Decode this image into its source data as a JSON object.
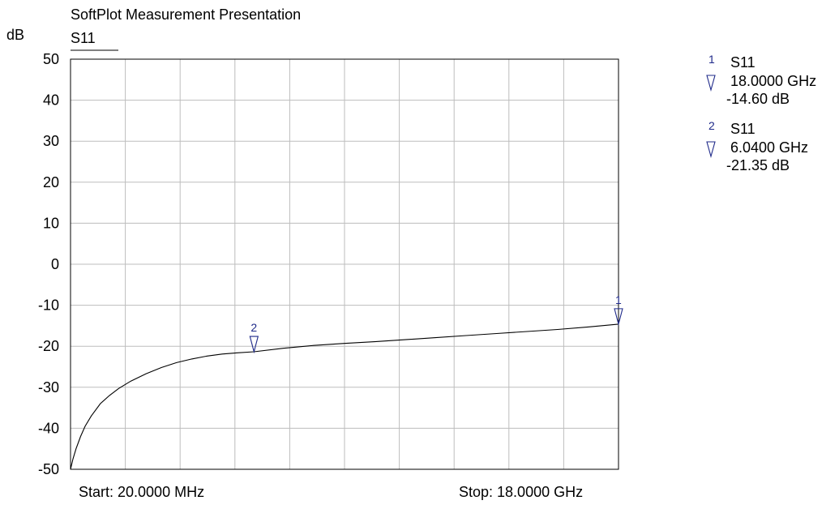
{
  "chart_data": {
    "type": "line",
    "title": "SoftPlot Measurement Presentation",
    "ylabel": "dB",
    "xlabel": "",
    "ylim": [
      -50,
      50
    ],
    "yticks": [
      50,
      40,
      30,
      20,
      10,
      0,
      -10,
      -20,
      -30,
      -40,
      -50
    ],
    "x_gridlines": 10,
    "y_gridlines": 10,
    "grid": true,
    "xlim_ghz": [
      0.02,
      18.0
    ],
    "start_label": "Start: 20.0000 MHz",
    "stop_label": "Stop: 18.0000 GHz",
    "series": [
      {
        "name": "S11",
        "color": "#000000",
        "x_ghz": [
          0.02,
          0.1,
          0.2,
          0.35,
          0.5,
          0.7,
          1.0,
          1.3,
          1.6,
          2.0,
          2.5,
          3.0,
          3.5,
          4.0,
          4.5,
          5.0,
          5.5,
          6.04,
          7.0,
          8.0,
          9.0,
          10.0,
          11.0,
          12.0,
          13.0,
          14.0,
          15.0,
          16.0,
          17.0,
          18.0
        ],
        "y_db": [
          -50.0,
          -47.5,
          -45.0,
          -42.0,
          -39.5,
          -37.0,
          -34.0,
          -32.0,
          -30.3,
          -28.5,
          -26.7,
          -25.2,
          -24.0,
          -23.1,
          -22.4,
          -21.9,
          -21.6,
          -21.35,
          -20.5,
          -19.8,
          -19.3,
          -18.9,
          -18.4,
          -17.9,
          -17.4,
          -16.9,
          -16.4,
          -15.9,
          -15.3,
          -14.6
        ]
      }
    ],
    "markers": [
      {
        "num": "1",
        "trace": "S11",
        "freq": "18.0000 GHz",
        "value": "-14.60 dB",
        "x_ghz": 18.0,
        "y_db": -14.6
      },
      {
        "num": "2",
        "trace": "S11",
        "freq": "6.0400 GHz",
        "value": "-21.35 dB",
        "x_ghz": 6.04,
        "y_db": -21.35
      }
    ],
    "legend_position": "right",
    "marker_color": "#1f2a8a"
  }
}
